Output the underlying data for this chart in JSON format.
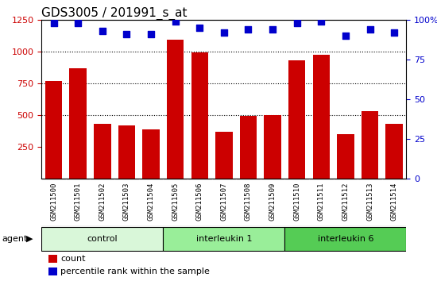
{
  "title": "GDS3005 / 201991_s_at",
  "samples": [
    "GSM211500",
    "GSM211501",
    "GSM211502",
    "GSM211503",
    "GSM211504",
    "GSM211505",
    "GSM211506",
    "GSM211507",
    "GSM211508",
    "GSM211509",
    "GSM211510",
    "GSM211511",
    "GSM211512",
    "GSM211513",
    "GSM211514"
  ],
  "counts": [
    765,
    865,
    430,
    420,
    385,
    1090,
    990,
    365,
    490,
    500,
    930,
    975,
    350,
    530,
    430
  ],
  "percentiles": [
    98,
    98,
    93,
    91,
    91,
    99,
    95,
    92,
    94,
    94,
    98,
    99,
    90,
    94,
    92
  ],
  "groups": [
    {
      "label": "control",
      "start": 0,
      "end": 5,
      "color": "#d9f7d9"
    },
    {
      "label": "interleukin 1",
      "start": 5,
      "end": 10,
      "color": "#99ee99"
    },
    {
      "label": "interleukin 6",
      "start": 10,
      "end": 15,
      "color": "#55cc55"
    }
  ],
  "bar_color": "#cc0000",
  "dot_color": "#0000cc",
  "ylim_left": [
    0,
    1250
  ],
  "ylim_right": [
    0,
    100
  ],
  "yticks_left": [
    250,
    500,
    750,
    1000,
    1250
  ],
  "yticks_right": [
    0,
    25,
    50,
    75,
    100
  ],
  "grid_values": [
    500,
    750,
    1000
  ],
  "title_fontsize": 11,
  "axis_label_color_left": "#cc0000",
  "axis_label_color_right": "#0000cc",
  "bg_color": "#ffffff",
  "xlabel_area_color": "#d0d0d0",
  "agent_label": "agent",
  "legend_count_label": "count",
  "legend_pct_label": "percentile rank within the sample"
}
